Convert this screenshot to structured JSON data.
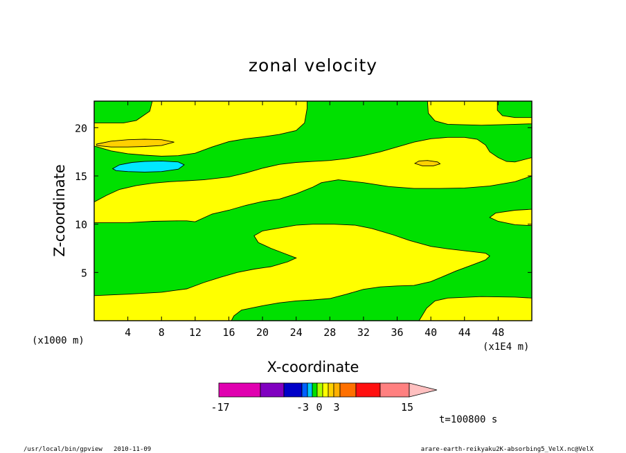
{
  "chart_data": {
    "type": "heatmap",
    "title": "zonal velocity",
    "xlabel": "X-coordinate",
    "ylabel": "Z-coordinate",
    "x_unit_note": "(x1E4 m)",
    "y_unit_note": "(x1000 m)",
    "xlim": [
      0,
      52
    ],
    "ylim": [
      0,
      22.75
    ],
    "x_ticks": [
      "4",
      "8",
      "12",
      "16",
      "20",
      "24",
      "28",
      "32",
      "36",
      "40",
      "44",
      "48"
    ],
    "y_ticks": [
      "5",
      "10",
      "15",
      "20"
    ],
    "colorbar": {
      "tick_labels": [
        "-17",
        "-3",
        "0",
        "3",
        "15"
      ],
      "colors": [
        "#e000b0",
        "#8000c0",
        "#0000c8",
        "#0060ff",
        "#00c8ff",
        "#00e000",
        "#b0ff00",
        "#ffff00",
        "#ffd000",
        "#ffb000",
        "#ff7000",
        "#ff1010",
        "#ff8080",
        "#ffc0c0"
      ]
    },
    "regions": [
      {
        "level": "green",
        "color": "#00e000",
        "polygon": [
          [
            0,
            0
          ],
          [
            52,
            0
          ],
          [
            52,
            22.75
          ],
          [
            0,
            22.75
          ]
        ]
      },
      {
        "level": "yellow",
        "color": "#ffff00",
        "polygon": [
          [
            0,
            0
          ],
          [
            0,
            2.6
          ],
          [
            4,
            2.75
          ],
          [
            8,
            2.95
          ],
          [
            11,
            3.3
          ],
          [
            13,
            3.95
          ],
          [
            15,
            4.5
          ],
          [
            17,
            5
          ],
          [
            19,
            5.35
          ],
          [
            21,
            5.6
          ],
          [
            23,
            6.1
          ],
          [
            24,
            6.5
          ],
          [
            22.5,
            7
          ],
          [
            21,
            7.5
          ],
          [
            19.5,
            8.1
          ],
          [
            19,
            8.8
          ],
          [
            20,
            9.3
          ],
          [
            22,
            9.6
          ],
          [
            24,
            9.9
          ],
          [
            26,
            10
          ],
          [
            28.5,
            10
          ],
          [
            31,
            9.9
          ],
          [
            33,
            9.55
          ],
          [
            35.5,
            8.9
          ],
          [
            37.5,
            8.3
          ],
          [
            40,
            7.7
          ],
          [
            42,
            7.45
          ],
          [
            43.5,
            7.3
          ],
          [
            45,
            7.15
          ],
          [
            46.5,
            7
          ],
          [
            47,
            6.7
          ],
          [
            46.5,
            6.3
          ],
          [
            45,
            5.8
          ],
          [
            43,
            5.15
          ],
          [
            41.5,
            4.6
          ],
          [
            40,
            4.05
          ],
          [
            38,
            3.65
          ],
          [
            36,
            3.6
          ],
          [
            34,
            3.5
          ],
          [
            32,
            3.25
          ],
          [
            30,
            2.75
          ],
          [
            28,
            2.3
          ],
          [
            26,
            2.15
          ],
          [
            24,
            2.05
          ],
          [
            22,
            1.85
          ],
          [
            20,
            1.55
          ],
          [
            17.5,
            1.1
          ],
          [
            16.6,
            0.5
          ],
          [
            16.3,
            0
          ],
          [
            0,
            0
          ]
        ]
      },
      {
        "level": "yellow",
        "color": "#ffff00",
        "polygon": [
          [
            38.6,
            0
          ],
          [
            39.5,
            1.3
          ],
          [
            40.5,
            2.05
          ],
          [
            42,
            2.35
          ],
          [
            46,
            2.5
          ],
          [
            50,
            2.45
          ],
          [
            52,
            2.35
          ],
          [
            52,
            0
          ]
        ]
      },
      {
        "level": "yellow",
        "color": "#ffff00",
        "polygon": [
          [
            0,
            12.3
          ],
          [
            1.5,
            13
          ],
          [
            3,
            13.6
          ],
          [
            5,
            14
          ],
          [
            7,
            14.25
          ],
          [
            9,
            14.4
          ],
          [
            11,
            14.5
          ],
          [
            13,
            14.6
          ],
          [
            16,
            14.9
          ],
          [
            18,
            15.3
          ],
          [
            20,
            15.8
          ],
          [
            22,
            16.2
          ],
          [
            24,
            16.4
          ],
          [
            26,
            16.5
          ],
          [
            28,
            16.6
          ],
          [
            30,
            16.8
          ],
          [
            32,
            17.1
          ],
          [
            34,
            17.5
          ],
          [
            36,
            18
          ],
          [
            38,
            18.5
          ],
          [
            40,
            18.85
          ],
          [
            42,
            19
          ],
          [
            44,
            19
          ],
          [
            45.5,
            18.8
          ],
          [
            46.5,
            18.2
          ],
          [
            47,
            17.5
          ],
          [
            48,
            16.9
          ],
          [
            49,
            16.5
          ],
          [
            50,
            16.45
          ],
          [
            52,
            16.9
          ],
          [
            52,
            15
          ],
          [
            50,
            14.4
          ],
          [
            47,
            13.95
          ],
          [
            44,
            13.75
          ],
          [
            41,
            13.7
          ],
          [
            38,
            13.7
          ],
          [
            35,
            13.9
          ],
          [
            32,
            14.3
          ],
          [
            29,
            14.6
          ],
          [
            27,
            14.3
          ],
          [
            26,
            13.85
          ],
          [
            24,
            13.15
          ],
          [
            22,
            12.6
          ],
          [
            20,
            12.35
          ],
          [
            18,
            11.95
          ],
          [
            16,
            11.45
          ],
          [
            14,
            11.05
          ],
          [
            12,
            10.25
          ],
          [
            11,
            10.35
          ],
          [
            10,
            10.35
          ],
          [
            7,
            10.3
          ],
          [
            4,
            10.15
          ],
          [
            0,
            10.15
          ]
        ]
      },
      {
        "level": "yellow",
        "color": "#ffff00",
        "polygon": [
          [
            0,
            18.1
          ],
          [
            2,
            17.6
          ],
          [
            4,
            17.3
          ],
          [
            6,
            17.15
          ],
          [
            8,
            17.05
          ],
          [
            10,
            17.1
          ],
          [
            12,
            17.35
          ],
          [
            14,
            18
          ],
          [
            16,
            18.55
          ],
          [
            18,
            18.85
          ],
          [
            20,
            19.05
          ],
          [
            22,
            19.3
          ],
          [
            24,
            19.7
          ],
          [
            25,
            20.5
          ],
          [
            25.3,
            22
          ],
          [
            25.3,
            22.75
          ],
          [
            6.9,
            22.75
          ],
          [
            6.6,
            21.7
          ],
          [
            5,
            20.75
          ],
          [
            3.5,
            20.5
          ],
          [
            2,
            20.5
          ],
          [
            0,
            20.5
          ]
        ]
      },
      {
        "level": "yellow",
        "color": "#ffff00",
        "polygon": [
          [
            39.6,
            22.75
          ],
          [
            39.7,
            21.5
          ],
          [
            40.5,
            20.7
          ],
          [
            42,
            20.35
          ],
          [
            46,
            20.25
          ],
          [
            50,
            20.35
          ],
          [
            52,
            20.4
          ],
          [
            52,
            22.75
          ]
        ]
      },
      {
        "level": "yellow",
        "color": "#ffff00",
        "polygon": [
          [
            52,
            9.85
          ],
          [
            50,
            9.95
          ],
          [
            48,
            10.3
          ],
          [
            47,
            10.7
          ],
          [
            47.7,
            11.15
          ],
          [
            50,
            11.45
          ],
          [
            52,
            11.55
          ]
        ]
      },
      {
        "level": "orange",
        "color": "#ffd000",
        "polygon": [
          [
            0.3,
            18.3
          ],
          [
            2,
            18.6
          ],
          [
            4,
            18.75
          ],
          [
            6,
            18.8
          ],
          [
            8,
            18.75
          ],
          [
            9.5,
            18.5
          ],
          [
            8,
            18.15
          ],
          [
            6,
            18.05
          ],
          [
            4,
            18
          ],
          [
            2,
            18
          ],
          [
            0.3,
            18.15
          ]
        ]
      },
      {
        "level": "cyan",
        "color": "#00e8ff",
        "polygon": [
          [
            2.2,
            15.75
          ],
          [
            3,
            16.15
          ],
          [
            4.5,
            16.4
          ],
          [
            6,
            16.5
          ],
          [
            8,
            16.55
          ],
          [
            10,
            16.45
          ],
          [
            10.7,
            16.15
          ],
          [
            10,
            15.7
          ],
          [
            8,
            15.45
          ],
          [
            6,
            15.4
          ],
          [
            4,
            15.45
          ],
          [
            2.6,
            15.55
          ]
        ]
      },
      {
        "level": "orange",
        "color": "#ffd000",
        "polygon": [
          [
            38.1,
            16.3
          ],
          [
            38.6,
            16.55
          ],
          [
            39.6,
            16.6
          ],
          [
            40.8,
            16.45
          ],
          [
            41.1,
            16.25
          ],
          [
            40.3,
            16.05
          ],
          [
            39,
            16.05
          ]
        ]
      },
      {
        "level": "green",
        "color": "#00e000",
        "polygon": [
          [
            47.9,
            22.75
          ],
          [
            47.9,
            21.8
          ],
          [
            48.5,
            21.25
          ],
          [
            50,
            21.05
          ],
          [
            52,
            21.05
          ],
          [
            52,
            22.75
          ]
        ]
      }
    ]
  },
  "footer": {
    "time": "t=100800 s",
    "left": "/usr/local/bin/gpview   2010-11-09",
    "right": "arare-earth-reikyaku2K-absorbing5_VelX.nc@VelX"
  }
}
